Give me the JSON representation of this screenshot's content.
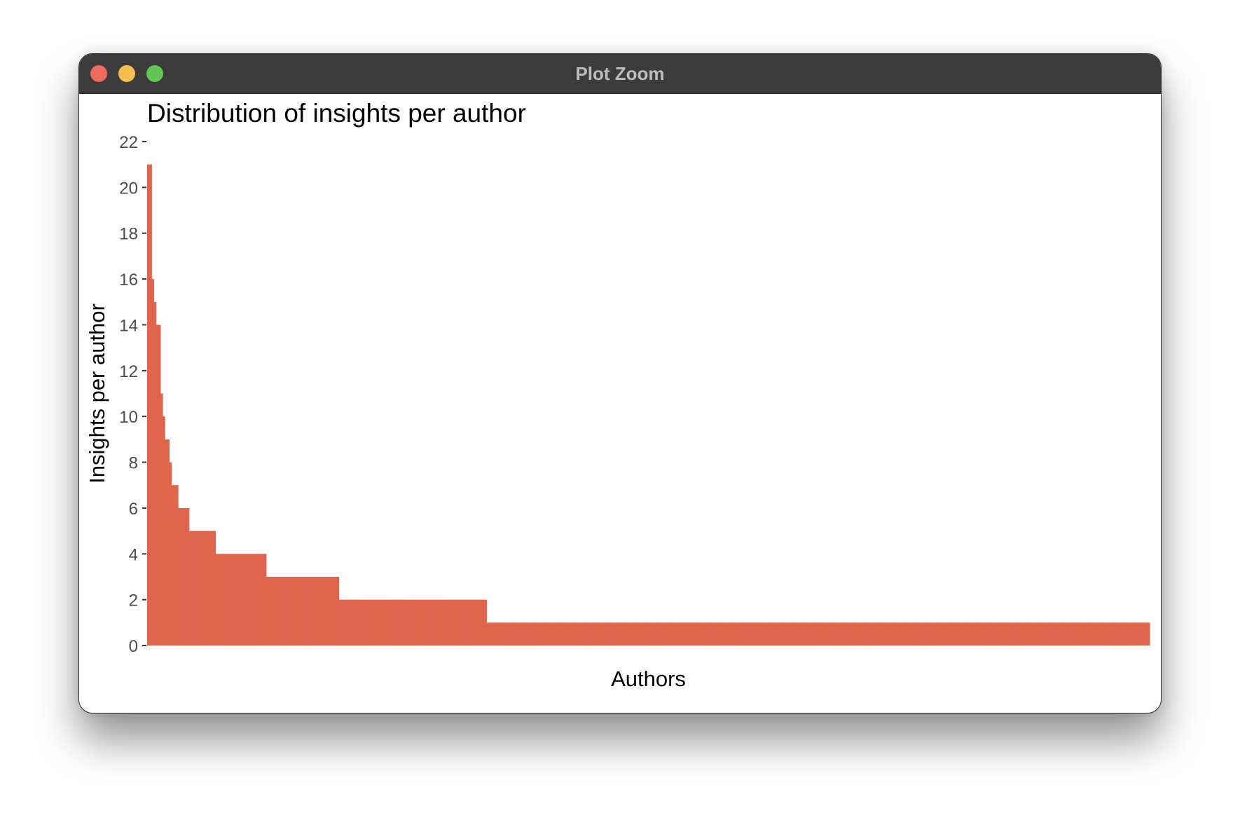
{
  "window": {
    "title": "Plot Zoom",
    "controls": {
      "close": "close-button",
      "minimize": "minimize-button",
      "zoom": "zoom-button"
    }
  },
  "colors": {
    "bar": "#e0654d",
    "titlebar": "#3c3c3c",
    "close": "#ee6a5e",
    "minimize": "#f5be4f",
    "zoom": "#62c554"
  },
  "chart_data": {
    "type": "bar",
    "title": "Distribution of insights per author",
    "xlabel": "Authors",
    "ylabel": "Insights per author",
    "ylim": [
      0,
      22
    ],
    "yticks": [
      0,
      2,
      4,
      6,
      8,
      10,
      12,
      14,
      16,
      18,
      20,
      22
    ],
    "x_tick_labels": "none",
    "grid": false,
    "legend": "none",
    "bar_gap": 0,
    "note_groups": "each group is a run of consecutive authors with the same value, in descending order",
    "groups": [
      {
        "value": 21,
        "authors": 2
      },
      {
        "value": 16,
        "authors": 1
      },
      {
        "value": 15,
        "authors": 1
      },
      {
        "value": 14,
        "authors": 2
      },
      {
        "value": 11,
        "authors": 1
      },
      {
        "value": 10,
        "authors": 1
      },
      {
        "value": 9,
        "authors": 2
      },
      {
        "value": 8,
        "authors": 1
      },
      {
        "value": 7,
        "authors": 3
      },
      {
        "value": 6,
        "authors": 5
      },
      {
        "value": 5,
        "authors": 12
      },
      {
        "value": 4,
        "authors": 23
      },
      {
        "value": 3,
        "authors": 33
      },
      {
        "value": 2,
        "authors": 67
      },
      {
        "value": 1,
        "authors": 301
      }
    ]
  }
}
